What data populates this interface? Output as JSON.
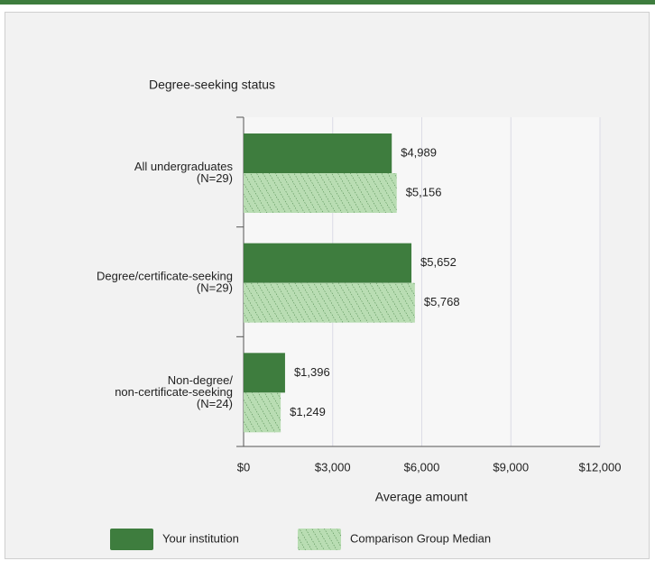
{
  "chart_data": {
    "type": "hbar",
    "title": "Degree-seeking status",
    "xlabel": "Average amount",
    "categories": [
      [
        "All undergraduates",
        "(N=29)"
      ],
      [
        "Degree/certificate-seeking",
        "(N=29)"
      ],
      [
        "Non-degree/",
        "non-certificate-seeking",
        "(N=24)"
      ]
    ],
    "series": [
      {
        "name": "Your institution",
        "color": "#3e7d3e",
        "values": [
          4989,
          5652,
          1396
        ],
        "value_labels": [
          "$4,989",
          "$5,652",
          "$1,396"
        ]
      },
      {
        "name": "Comparison Group Median",
        "color": "#b9ddb3",
        "hatch": true,
        "values": [
          5156,
          5768,
          1249
        ],
        "value_labels": [
          "$5,156",
          "$5,768",
          "$1,249"
        ]
      }
    ],
    "xlim": [
      0,
      12000
    ],
    "xticks": [
      {
        "value": 0,
        "label": "$0"
      },
      {
        "value": 3000,
        "label": "$3,000"
      },
      {
        "value": 6000,
        "label": "$6,000"
      },
      {
        "value": 9000,
        "label": "$9,000"
      },
      {
        "value": 12000,
        "label": "$12,000"
      }
    ],
    "grid": true,
    "legend": "bottom"
  }
}
